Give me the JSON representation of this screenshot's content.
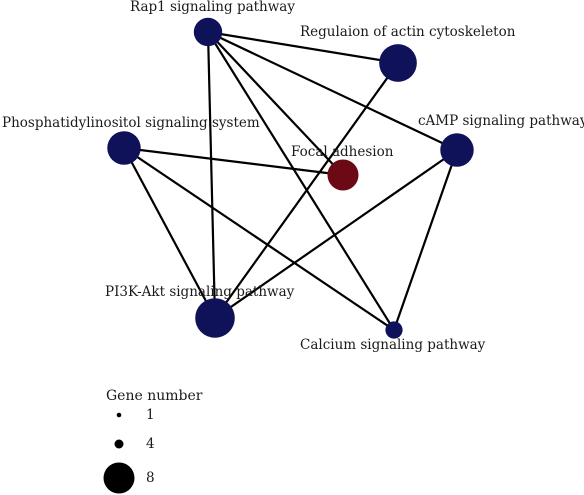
{
  "colors": {
    "pathway_node": "#0f1159",
    "center_node": "#6b0a14",
    "legend_node": "#000000",
    "edge": "#000000"
  },
  "nodes": [
    {
      "id": "rap1",
      "label": "Rap1 signaling pathway",
      "gene_number": 4
    },
    {
      "id": "actin",
      "label": "Regulaion of actin cytoskeleton",
      "gene_number": 8
    },
    {
      "id": "pi",
      "label": "Phosphatidylinositol signaling system",
      "gene_number": 6
    },
    {
      "id": "camp",
      "label": "cAMP signaling pathway",
      "gene_number": 6
    },
    {
      "id": "focal",
      "label": "Focal adhesion",
      "gene_number": 5
    },
    {
      "id": "pi3k",
      "label": "PI3K-Akt signaling pathway",
      "gene_number": 9
    },
    {
      "id": "calcium",
      "label": "Calcium signaling pathway",
      "gene_number": 1
    }
  ],
  "edges": [
    [
      "rap1",
      "actin"
    ],
    [
      "rap1",
      "camp"
    ],
    [
      "rap1",
      "focal"
    ],
    [
      "rap1",
      "pi3k"
    ],
    [
      "rap1",
      "calcium"
    ],
    [
      "actin",
      "pi3k"
    ],
    [
      "pi",
      "focal"
    ],
    [
      "pi",
      "pi3k"
    ],
    [
      "pi",
      "calcium"
    ],
    [
      "camp",
      "pi3k"
    ],
    [
      "camp",
      "calcium"
    ]
  ],
  "legend": {
    "title": "Gene number",
    "items": [
      {
        "label": "1",
        "gene_number": 1
      },
      {
        "label": "4",
        "gene_number": 4
      },
      {
        "label": "8",
        "gene_number": 8
      }
    ]
  }
}
